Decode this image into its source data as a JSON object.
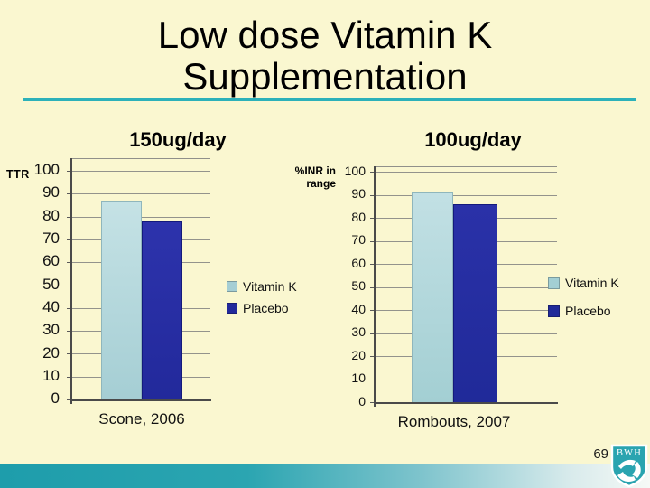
{
  "slide": {
    "title_line1": "Low dose Vitamin K",
    "title_line2": "Supplementation",
    "page_number": "69",
    "logo_text": "BWH",
    "background_color": "#FAF7D0",
    "accent_teal": "#2CB1B9",
    "footer_gradient_start": "#1E9DAB",
    "footer_gradient_end": "#F6F9F6"
  },
  "chart_data": [
    {
      "type": "bar",
      "title": "150ug/day",
      "ylabel": "TTR",
      "xlabel": "",
      "categories": [
        "Scone, 2006"
      ],
      "series": [
        {
          "name": "Vitamin K",
          "values": [
            87
          ],
          "color": "#A5CED4",
          "color_top": "#C5E2E5",
          "edge": "#8FB6BC"
        },
        {
          "name": "Placebo",
          "values": [
            78
          ],
          "color": "#22299B",
          "color_top": "#2D33AC",
          "edge": "#141A7C"
        }
      ],
      "ylim": [
        0,
        100
      ],
      "ytick_step": 10,
      "grid": true,
      "legend_position": "right"
    },
    {
      "type": "bar",
      "title": "100ug/day",
      "ylabel": "%INR in range",
      "xlabel": "",
      "categories": [
        "Rombouts, 2007"
      ],
      "series": [
        {
          "name": "Vitamin K",
          "values": [
            91
          ],
          "color": "#A3CFD3",
          "color_top": "#C2E0E4",
          "edge": "#8FB6BC"
        },
        {
          "name": "Placebo",
          "values": [
            86
          ],
          "color": "#202A99",
          "color_top": "#2A31A8",
          "edge": "#141A7C"
        }
      ],
      "ylim": [
        0,
        100
      ],
      "ytick_step": 10,
      "grid": true,
      "legend_position": "right"
    }
  ]
}
